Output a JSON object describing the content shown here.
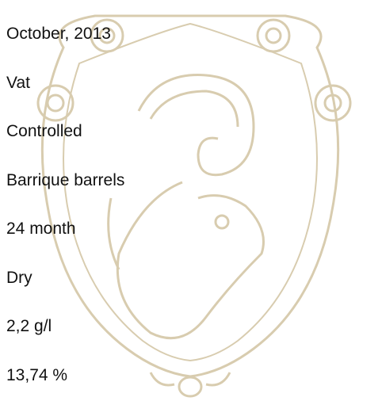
{
  "items": [
    "October, 2013",
    "Vat",
    "Controlled",
    "Barrique barrels",
    "24 month",
    "Dry",
    "2,2 g/l",
    "13,74 %"
  ]
}
